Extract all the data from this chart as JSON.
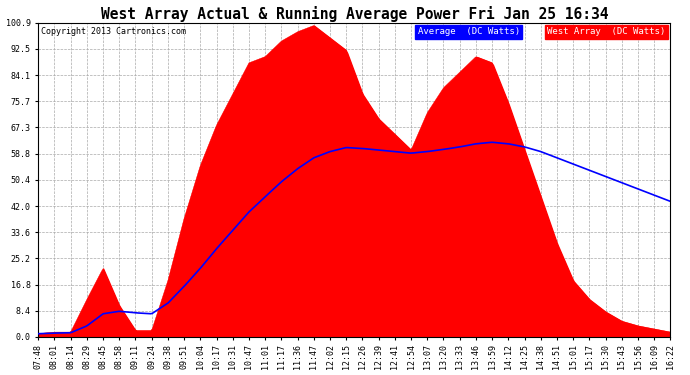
{
  "title": "West Array Actual & Running Average Power Fri Jan 25 16:34",
  "copyright": "Copyright 2013 Cartronics.com",
  "legend_labels": [
    "Average  (DC Watts)",
    "West Array  (DC Watts)"
  ],
  "legend_colors": [
    "#0000ff",
    "#ff0000"
  ],
  "yticks": [
    0.0,
    8.4,
    16.8,
    25.2,
    33.6,
    42.0,
    50.4,
    58.8,
    67.3,
    75.7,
    84.1,
    92.5,
    100.9
  ],
  "ylim": [
    0.0,
    100.9
  ],
  "background_color": "#ffffff",
  "plot_bg_color": "#ffffff",
  "grid_color": "#aaaaaa",
  "xtick_labels": [
    "07:48",
    "08:01",
    "08:14",
    "08:29",
    "08:45",
    "08:58",
    "09:11",
    "09:24",
    "09:38",
    "09:51",
    "10:04",
    "10:17",
    "10:31",
    "10:47",
    "11:01",
    "11:17",
    "11:36",
    "11:47",
    "12:02",
    "12:15",
    "12:26",
    "12:39",
    "12:41",
    "12:54",
    "13:07",
    "13:20",
    "13:33",
    "13:46",
    "13:59",
    "14:12",
    "14:25",
    "14:38",
    "14:51",
    "15:01",
    "15:17",
    "15:30",
    "15:43",
    "15:56",
    "16:09",
    "16:22"
  ],
  "west_array": [
    1.0,
    1.5,
    1.5,
    12.0,
    22.0,
    10.0,
    2.0,
    2.0,
    18.0,
    38.0,
    55.0,
    68.0,
    78.0,
    88.0,
    90.0,
    95.0,
    98.0,
    100.0,
    96.0,
    92.0,
    78.0,
    70.0,
    65.0,
    60.0,
    72.0,
    80.0,
    85.0,
    90.0,
    88.0,
    75.0,
    60.0,
    45.0,
    30.0,
    18.0,
    12.0,
    8.0,
    5.0,
    3.5,
    2.5,
    1.5
  ],
  "avg_line": [
    1.0,
    1.2,
    1.3,
    3.5,
    7.4,
    8.2,
    7.7,
    7.4,
    10.8,
    16.2,
    22.0,
    28.3,
    34.2,
    40.1,
    45.0,
    49.8,
    54.0,
    57.5,
    59.5,
    60.8,
    60.5,
    60.0,
    59.5,
    59.0,
    59.5,
    60.2,
    61.0,
    62.0,
    62.5,
    62.0,
    61.0,
    59.5,
    57.5,
    55.5,
    53.5,
    51.5,
    49.5,
    47.5,
    45.5,
    43.5
  ]
}
